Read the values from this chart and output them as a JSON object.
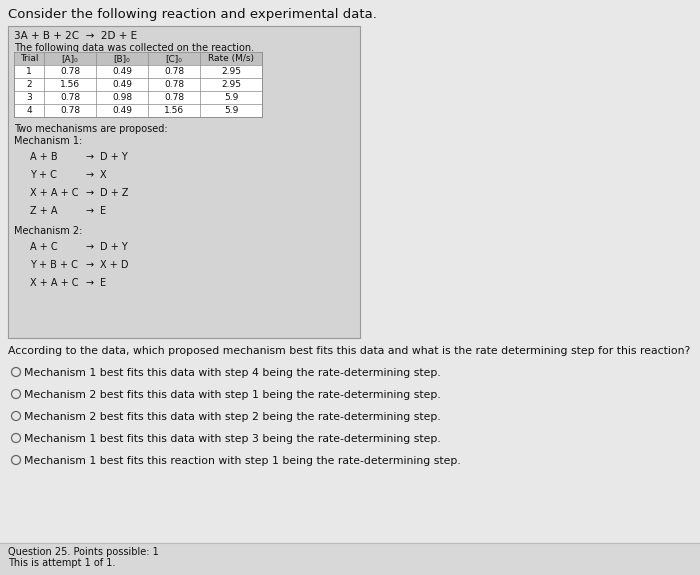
{
  "title": "Consider the following reaction and experimental data.",
  "reaction": "3A + B + 2C  →  2D + E",
  "table_note": "The following data was collected on the reaction.",
  "table_headers": [
    "Trial",
    "[A]₀",
    "[B]₀",
    "[C]₀",
    "Rate (M/s)"
  ],
  "table_data": [
    [
      "1",
      "0.78",
      "0.49",
      "0.78",
      "2.95"
    ],
    [
      "2",
      "1.56",
      "0.49",
      "0.78",
      "2.95"
    ],
    [
      "3",
      "0.78",
      "0.98",
      "0.78",
      "5.9"
    ],
    [
      "4",
      "0.78",
      "0.49",
      "1.56",
      "5.9"
    ]
  ],
  "two_mech_label": "Two mechanisms are proposed:",
  "mech1_label": "Mechanism 1:",
  "mech1_steps": [
    [
      "A + B",
      "→",
      "D + Y"
    ],
    [
      "Y + C",
      "→",
      "X"
    ],
    [
      "X + A + C",
      "→",
      "D + Z"
    ],
    [
      "Z + A",
      "→",
      "E"
    ]
  ],
  "mech2_label": "Mechanism 2:",
  "mech2_steps": [
    [
      "A + C",
      "→",
      "D + Y"
    ],
    [
      "Y + B + C",
      "→",
      "X + D"
    ],
    [
      "X + A + C",
      "→",
      "E"
    ]
  ],
  "question": "According to the data, which proposed mechanism best fits this data and what is the rate determining step for this reaction?",
  "options": [
    "Mechanism 1 best fits this data with step 4 being the rate-determining step.",
    "Mechanism 2 best fits this data with step 1 being the rate-determining step.",
    "Mechanism 2 best fits this data with step 2 being the rate-determining step.",
    "Mechanism 1 best fits this data with step 3 being the rate-determining step.",
    "Mechanism 1 best fits this reaction with step 1 being the rate-determining step."
  ],
  "footer_line1": "Question 25. Points possible: 1",
  "footer_line2": "This is attempt 1 of 1.",
  "bg_color": "#e8e8e8",
  "box_bg": "#d4d4d4",
  "white": "#ffffff",
  "header_bg": "#c0c0c0"
}
